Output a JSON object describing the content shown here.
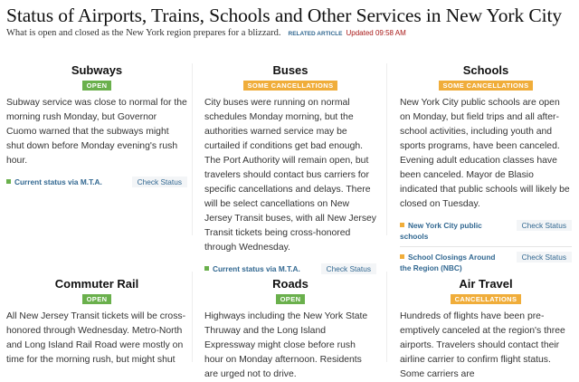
{
  "header": {
    "title": "Status of Airports, Trains, Schools and Other Services in New York City",
    "subtitle": "What is open and closed as the New York region prepares for a blizzard.",
    "related": "RELATED ARTICLE",
    "updated": "Updated 09:58 AM"
  },
  "colors": {
    "open": "#6ab04c",
    "cancellations": "#f0ad3a",
    "link": "#326891"
  },
  "cards": [
    {
      "title": "Subways",
      "status": "OPEN",
      "text": "Subway service was close to normal for the morning rush Monday, but Governor Cuomo warned that the subways might shut down before Monday evening's rush hour.",
      "links": [
        {
          "label": "Current status via M.T.A.",
          "button": "Check Status"
        }
      ]
    },
    {
      "title": "Buses",
      "status": "SOME CANCELLATIONS",
      "text": "City buses were running on normal schedules Monday morning, but the authorities warned service may be curtailed if conditions get bad enough. The Port Authority will remain open, but travelers should contact bus carriers for specific cancellations and delays. There will be select cancellations on New Jersey Transit buses, with all New Jersey Transit tickets being cross-honored through Wednesday.",
      "links": [
        {
          "label": "Current status via M.T.A.",
          "button": "Check Status"
        }
      ]
    },
    {
      "title": "Schools",
      "status": "SOME CANCELLATIONS",
      "text": "New York City public schools are open on Monday, but field trips and all after-school activities, including youth and sports programs, have been canceled. Evening adult education classes have been canceled. Mayor de Blasio indicated that public schools will likely be closed on Tuesday.",
      "links": [
        {
          "label": "New York City public schools",
          "button": "Check Status"
        },
        {
          "label": "School Closings Around the Region (NBC)",
          "button": "Check Status"
        }
      ]
    },
    {
      "title": "Commuter Rail",
      "status": "OPEN",
      "text": "All New Jersey Transit tickets will be cross-honored through Wednesday. Metro-North and Long Island Rail Road were mostly on time for the morning rush, but might shut"
    },
    {
      "title": "Roads",
      "status": "OPEN",
      "text": "Highways including the New York State Thruway and the Long Island Expressway might close before rush hour on Monday afternoon. Residents are urged not to drive."
    },
    {
      "title": "Air Travel",
      "status": "CANCELLATIONS",
      "text": "Hundreds of flights have been pre-emptively canceled at the region's three airports. Travelers should contact their airline carrier to confirm flight status. Some carriers are"
    }
  ]
}
